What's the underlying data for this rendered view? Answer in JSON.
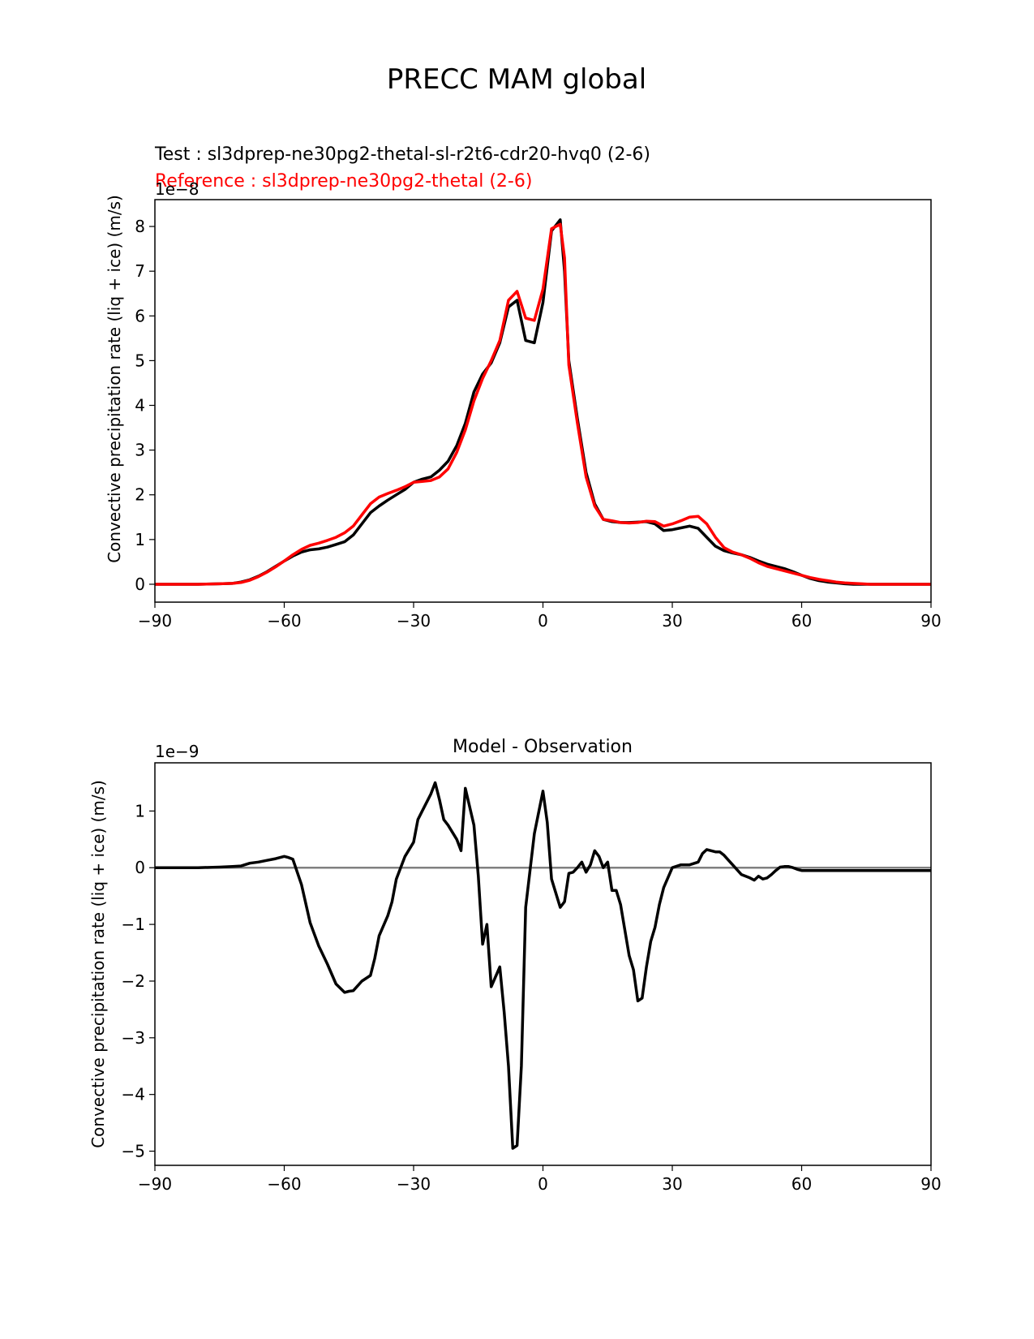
{
  "figure": {
    "title": "PRECC MAM global"
  },
  "chart_data": [
    {
      "type": "line",
      "title_test": "Test : sl3dprep-ne30pg2-thetal-sl-r2t6-cdr20-hvq0 (2-6)",
      "title_reference": "Reference : sl3dprep-ne30pg2-thetal (2-6)",
      "ylabel": "Convective precipitation rate (liq + ice) (m/s)",
      "offset_label": "1e−8",
      "xlim": [
        -90,
        90
      ],
      "ylim": [
        -0.4,
        8.6
      ],
      "xticks": [
        -90,
        -60,
        -30,
        0,
        30,
        60,
        90
      ],
      "xtick_labels": [
        "−90",
        "−60",
        "−30",
        "0",
        "30",
        "60",
        "90"
      ],
      "yticks": [
        0,
        1,
        2,
        3,
        4,
        5,
        6,
        7,
        8
      ],
      "ytick_labels": [
        "0",
        "1",
        "2",
        "3",
        "4",
        "5",
        "6",
        "7",
        "8"
      ],
      "series": [
        {
          "name": "Test",
          "color": "#000000",
          "x": [
            -90,
            -80,
            -75,
            -72,
            -70,
            -68,
            -66,
            -64,
            -62,
            -60,
            -58,
            -56,
            -54,
            -52,
            -50,
            -48,
            -46,
            -44,
            -42,
            -40,
            -38,
            -36,
            -34,
            -32,
            -30,
            -28,
            -26,
            -24,
            -22,
            -20,
            -18,
            -16,
            -14,
            -12,
            -10,
            -8,
            -6,
            -4,
            -2,
            0,
            2,
            4,
            5,
            6,
            8,
            10,
            12,
            14,
            16,
            18,
            20,
            22,
            24,
            26,
            28,
            30,
            32,
            34,
            36,
            38,
            40,
            42,
            44,
            46,
            48,
            50,
            52,
            54,
            56,
            58,
            60,
            62,
            64,
            66,
            68,
            70,
            72,
            74,
            76,
            78,
            80,
            85,
            90
          ],
          "values": [
            0,
            0,
            0.01,
            0.02,
            0.05,
            0.1,
            0.18,
            0.28,
            0.4,
            0.52,
            0.63,
            0.72,
            0.77,
            0.79,
            0.83,
            0.89,
            0.95,
            1.1,
            1.35,
            1.6,
            1.75,
            1.88,
            2.0,
            2.12,
            2.28,
            2.35,
            2.4,
            2.55,
            2.75,
            3.1,
            3.6,
            4.3,
            4.7,
            4.95,
            5.4,
            6.2,
            6.35,
            5.45,
            5.4,
            6.3,
            7.9,
            8.15,
            7.0,
            5.0,
            3.7,
            2.5,
            1.8,
            1.45,
            1.4,
            1.38,
            1.38,
            1.39,
            1.4,
            1.35,
            1.2,
            1.22,
            1.26,
            1.3,
            1.25,
            1.05,
            0.85,
            0.75,
            0.7,
            0.66,
            0.6,
            0.52,
            0.45,
            0.4,
            0.35,
            0.28,
            0.2,
            0.13,
            0.08,
            0.05,
            0.03,
            0.01,
            0,
            0,
            0,
            0,
            0,
            0,
            0
          ]
        },
        {
          "name": "Reference",
          "color": "#ff0000",
          "x": [
            -90,
            -80,
            -75,
            -72,
            -70,
            -68,
            -66,
            -64,
            -62,
            -60,
            -58,
            -56,
            -54,
            -52,
            -50,
            -48,
            -46,
            -44,
            -42,
            -40,
            -38,
            -36,
            -34,
            -32,
            -30,
            -28,
            -26,
            -24,
            -22,
            -20,
            -18,
            -16,
            -14,
            -12,
            -10,
            -8,
            -6,
            -4,
            -2,
            0,
            2,
            4,
            5,
            6,
            8,
            10,
            12,
            14,
            16,
            18,
            20,
            22,
            24,
            26,
            28,
            30,
            32,
            34,
            36,
            38,
            40,
            42,
            44,
            46,
            48,
            50,
            52,
            54,
            56,
            58,
            60,
            62,
            64,
            66,
            68,
            70,
            72,
            74,
            76,
            78,
            80,
            85,
            90
          ],
          "values": [
            0,
            0,
            0.01,
            0.02,
            0.04,
            0.09,
            0.17,
            0.27,
            0.39,
            0.52,
            0.66,
            0.78,
            0.87,
            0.92,
            0.98,
            1.05,
            1.15,
            1.3,
            1.55,
            1.8,
            1.95,
            2.03,
            2.1,
            2.18,
            2.28,
            2.3,
            2.32,
            2.4,
            2.58,
            2.95,
            3.45,
            4.1,
            4.6,
            5.0,
            5.45,
            6.35,
            6.55,
            5.95,
            5.9,
            6.6,
            7.95,
            8.05,
            7.3,
            4.9,
            3.6,
            2.4,
            1.75,
            1.45,
            1.42,
            1.38,
            1.37,
            1.38,
            1.41,
            1.4,
            1.3,
            1.35,
            1.42,
            1.5,
            1.52,
            1.35,
            1.05,
            0.82,
            0.72,
            0.66,
            0.58,
            0.48,
            0.4,
            0.35,
            0.3,
            0.25,
            0.2,
            0.15,
            0.11,
            0.08,
            0.05,
            0.03,
            0.02,
            0.01,
            0,
            0,
            0,
            0,
            0
          ]
        }
      ]
    },
    {
      "type": "line",
      "title": "Model - Observation",
      "ylabel": "Convective precipitation rate (liq + ice) (m/s)",
      "offset_label": "1e−9",
      "xlim": [
        -90,
        90
      ],
      "ylim": [
        -5.25,
        1.85
      ],
      "xticks": [
        -90,
        -60,
        -30,
        0,
        30,
        60,
        90
      ],
      "xtick_labels": [
        "−90",
        "−60",
        "−30",
        "0",
        "30",
        "60",
        "90"
      ],
      "yticks": [
        -5,
        -4,
        -3,
        -2,
        -1,
        0,
        1
      ],
      "ytick_labels": [
        "−5",
        "−4",
        "−3",
        "−2",
        "−1",
        "0",
        "1"
      ],
      "zero_line_color": "#808080",
      "series": [
        {
          "name": "Model - Observation",
          "color": "#000000",
          "x": [
            -90,
            -80,
            -75,
            -72,
            -70,
            -68,
            -66,
            -64,
            -62,
            -60,
            -59,
            -58,
            -56,
            -54,
            -52,
            -50,
            -48,
            -46,
            -45,
            -44,
            -42,
            -40,
            -39,
            -38,
            -36,
            -35,
            -34,
            -32,
            -30,
            -29,
            -28,
            -26,
            -25,
            -24,
            -23,
            -22,
            -20,
            -19,
            -18,
            -16,
            -15,
            -14,
            -13,
            -12,
            -10,
            -9,
            -8,
            -7,
            -6,
            -5,
            -4,
            -2,
            0,
            1,
            2,
            4,
            5,
            6,
            7,
            8,
            9,
            10,
            11,
            12,
            13,
            14,
            15,
            16,
            17,
            18,
            19,
            20,
            21,
            22,
            23,
            24,
            25,
            26,
            27,
            28,
            30,
            32,
            34,
            36,
            37,
            38,
            39,
            40,
            41,
            42,
            44,
            46,
            48,
            49,
            50,
            51,
            52,
            53,
            54,
            55,
            56,
            57,
            58,
            59,
            60,
            61,
            62,
            64,
            66,
            68,
            70,
            72,
            74,
            76,
            78,
            80,
            85,
            90
          ],
          "values": [
            0,
            0,
            0.01,
            0.02,
            0.03,
            0.08,
            0.1,
            0.13,
            0.16,
            0.2,
            0.18,
            0.15,
            -0.3,
            -0.97,
            -1.38,
            -1.7,
            -2.05,
            -2.2,
            -2.18,
            -2.17,
            -2.0,
            -1.9,
            -1.6,
            -1.2,
            -0.85,
            -0.6,
            -0.2,
            0.2,
            0.45,
            0.85,
            1.0,
            1.3,
            1.5,
            1.2,
            0.85,
            0.75,
            0.5,
            0.3,
            1.4,
            0.75,
            -0.15,
            -1.35,
            -1.0,
            -2.1,
            -1.75,
            -2.55,
            -3.5,
            -4.95,
            -4.9,
            -3.5,
            -0.7,
            0.6,
            1.35,
            0.8,
            -0.2,
            -0.7,
            -0.6,
            -0.1,
            -0.08,
            0.0,
            0.1,
            -0.08,
            0.05,
            0.3,
            0.2,
            0.0,
            0.1,
            -0.4,
            -0.4,
            -0.65,
            -1.1,
            -1.55,
            -1.8,
            -2.35,
            -2.3,
            -1.75,
            -1.3,
            -1.05,
            -0.65,
            -0.35,
            0.0,
            0.05,
            0.05,
            0.1,
            0.25,
            0.32,
            0.3,
            0.28,
            0.28,
            0.22,
            0.05,
            -0.12,
            -0.18,
            -0.22,
            -0.15,
            -0.2,
            -0.18,
            -0.12,
            -0.05,
            0.01,
            0.02,
            0.02,
            0,
            -0.03,
            -0.05,
            -0.05,
            -0.05,
            -0.05,
            -0.05,
            -0.05,
            -0.05,
            -0.05,
            -0.05,
            -0.05,
            -0.05,
            -0.05,
            -0.05,
            -0.05
          ]
        }
      ]
    }
  ]
}
